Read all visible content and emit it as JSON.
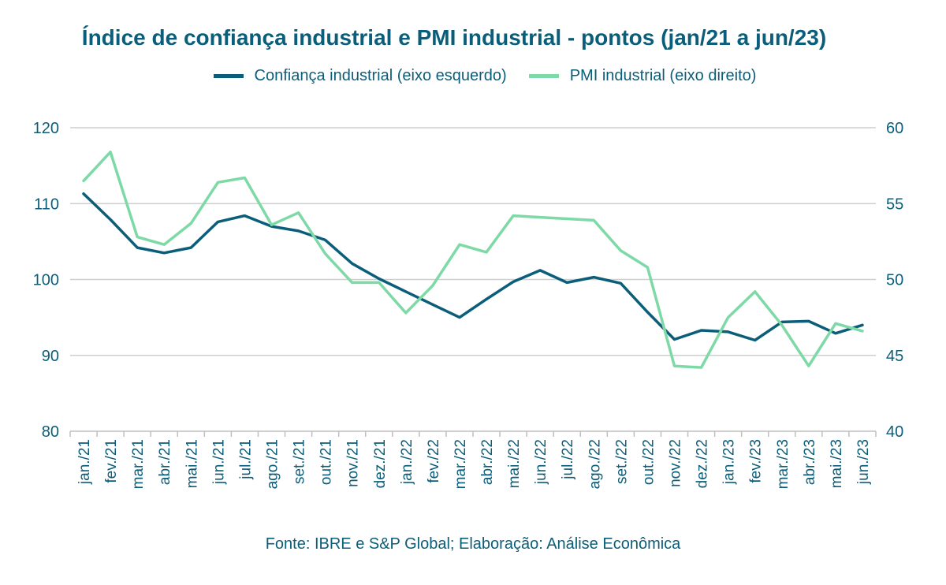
{
  "chart_data": {
    "type": "line",
    "title": "Índice de confiança industrial e PMI industrial - pontos (jan/21 a jun/23)",
    "categories": [
      "jan./21",
      "fev./21",
      "mar./21",
      "abr./21",
      "mai./21",
      "jun./21",
      "jul./21",
      "ago./21",
      "set./21",
      "out./21",
      "nov./21",
      "dez./21",
      "jan./22",
      "fev./22",
      "mar./22",
      "abr./22",
      "mai./22",
      "jun./22",
      "jul./22",
      "ago./22",
      "set./22",
      "out./22",
      "nov./22",
      "dez./22",
      "jan./23",
      "fev./23",
      "mar./23",
      "abr./23",
      "mai./23",
      "jun./23"
    ],
    "y_left": {
      "lim": [
        80,
        120
      ],
      "ticks": [
        80,
        90,
        100,
        110,
        120
      ]
    },
    "y_right": {
      "lim": [
        40,
        60
      ],
      "ticks": [
        40,
        45,
        50,
        55,
        60
      ]
    },
    "grid": true,
    "legend_position": "top",
    "series": [
      {
        "name": "Confiança industrial (eixo esquerdo)",
        "axis": "left",
        "color": "#0b5e7a",
        "values": [
          111.3,
          107.9,
          104.2,
          103.5,
          104.2,
          107.6,
          108.4,
          107.0,
          106.4,
          105.2,
          102.1,
          100.1,
          98.4,
          96.7,
          95.0,
          97.4,
          99.7,
          101.2,
          99.6,
          100.3,
          99.5,
          95.7,
          92.1,
          93.3,
          93.1,
          92.0,
          94.4,
          94.5,
          92.9,
          94.0
        ]
      },
      {
        "name": "PMI industrial (eixo direito)",
        "axis": "right",
        "color": "#7dd9a5",
        "values": [
          56.5,
          58.4,
          52.8,
          52.3,
          53.7,
          56.4,
          56.7,
          53.6,
          54.4,
          51.7,
          49.8,
          49.8,
          47.8,
          49.6,
          52.3,
          51.8,
          54.2,
          54.1,
          54.0,
          53.9,
          51.9,
          50.8,
          44.3,
          44.2,
          47.5,
          49.2,
          47.0,
          44.3,
          47.1,
          46.6
        ]
      }
    ],
    "source": "Fonte: IBRE e S&P Global; Elaboração: Análise Econômica"
  }
}
